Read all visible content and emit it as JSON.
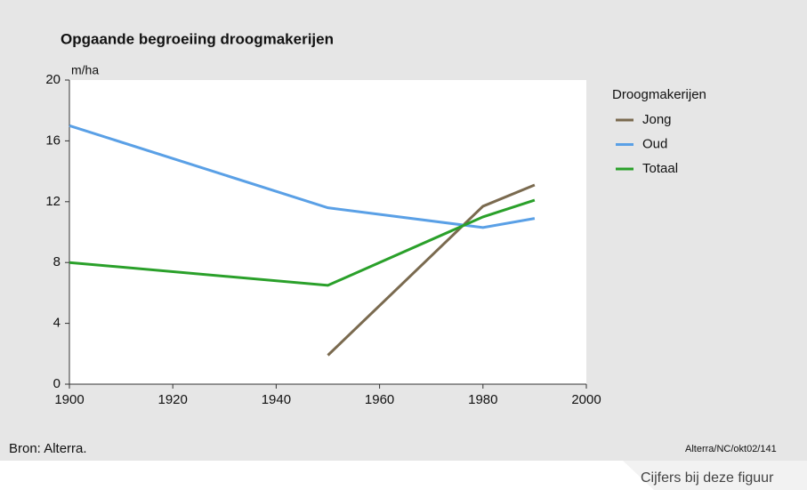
{
  "chart_data": {
    "type": "line",
    "title": "Opgaande begroeiing droogmakerijen",
    "ylabel": "m/ha",
    "legend_title": "Droogmakerijen",
    "source": "Bron: Alterra.",
    "credit": "Alterra/NC/okt02/141",
    "x": [
      1900,
      1950,
      1980,
      1990
    ],
    "series": [
      {
        "name": "Jong",
        "color": "#7a6a4f",
        "values": [
          null,
          1.9,
          11.7,
          13.1
        ]
      },
      {
        "name": "Oud",
        "color": "#5aa0e6",
        "values": [
          17.0,
          11.6,
          10.3,
          10.9
        ]
      },
      {
        "name": "Totaal",
        "color": "#2aa02a",
        "values": [
          8.0,
          6.5,
          11.0,
          12.1
        ]
      }
    ],
    "xlim": [
      1900,
      2000
    ],
    "xticks": [
      1900,
      1920,
      1940,
      1960,
      1980,
      2000
    ],
    "ylim": [
      0,
      20
    ],
    "yticks": [
      0,
      4,
      8,
      12,
      16,
      20
    ],
    "legend": "right"
  },
  "link": "Cijfers bij deze figuur"
}
